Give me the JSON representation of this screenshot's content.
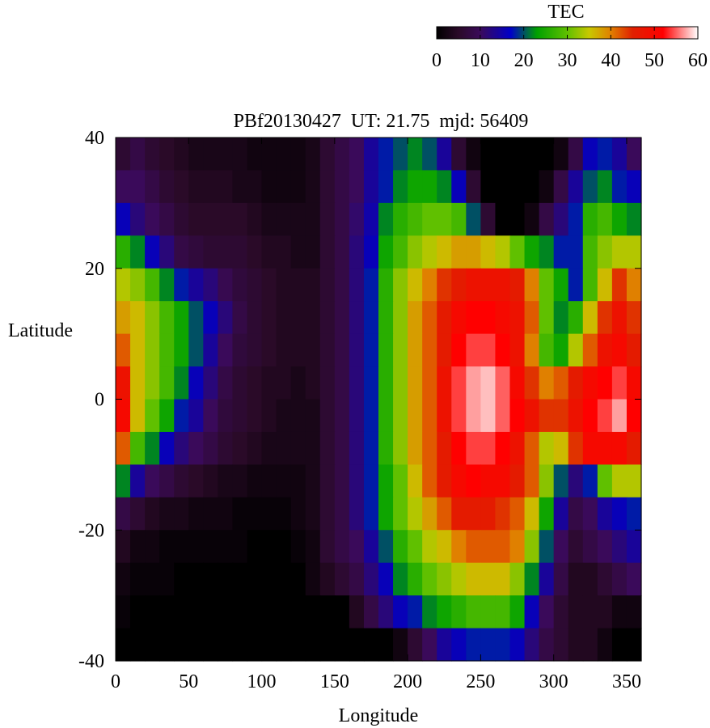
{
  "chart_data": {
    "type": "heatmap",
    "title": "PBf20130427  UT: 21.75  mjd: 56409",
    "xlabel": "Longitude",
    "ylabel": "Latitude",
    "xlim": [
      0,
      360
    ],
    "ylim": [
      -40,
      40
    ],
    "xticks": [
      "0",
      "50",
      "100",
      "150",
      "200",
      "250",
      "300",
      "350"
    ],
    "yticks": [
      "40",
      "20",
      "0",
      "-20",
      "-40"
    ],
    "colorbar": {
      "label": "TEC",
      "range": [
        0,
        60
      ],
      "ticks": [
        "0",
        "10",
        "20",
        "30",
        "40",
        "50",
        "60"
      ],
      "stops": [
        {
          "value": 0,
          "color": "#000000"
        },
        {
          "value": 5,
          "color": "#2a0a28"
        },
        {
          "value": 10,
          "color": "#3a0a5a"
        },
        {
          "value": 17,
          "color": "#0000c8"
        },
        {
          "value": 23,
          "color": "#00a000"
        },
        {
          "value": 30,
          "color": "#60c000"
        },
        {
          "value": 35,
          "color": "#c8c800"
        },
        {
          "value": 40,
          "color": "#e08000"
        },
        {
          "value": 45,
          "color": "#e02000"
        },
        {
          "value": 52,
          "color": "#ff0000"
        },
        {
          "value": 60,
          "color": "#ffffff"
        }
      ]
    },
    "lon_bins": [
      0,
      10,
      20,
      30,
      40,
      50,
      60,
      70,
      80,
      90,
      100,
      110,
      120,
      130,
      140,
      150,
      160,
      170,
      180,
      190,
      200,
      210,
      220,
      230,
      240,
      250,
      260,
      270,
      280,
      290,
      300,
      310,
      320,
      330,
      340,
      350,
      360
    ],
    "lat_bins": [
      40,
      35,
      30,
      25,
      20,
      15,
      10,
      5,
      0,
      -5,
      -10,
      -15,
      -20,
      -25,
      -30,
      -35,
      -40
    ],
    "values": [
      [
        6,
        8,
        6,
        5,
        4,
        3,
        3,
        3,
        3,
        2,
        2,
        2,
        2,
        3,
        6,
        8,
        10,
        14,
        18,
        20,
        22,
        20,
        14,
        6,
        2,
        0,
        0,
        0,
        0,
        0,
        2,
        8,
        16,
        18,
        14,
        10
      ],
      [
        10,
        10,
        8,
        6,
        5,
        4,
        4,
        4,
        3,
        3,
        2,
        2,
        2,
        3,
        6,
        8,
        10,
        14,
        18,
        22,
        24,
        24,
        22,
        16,
        6,
        0,
        0,
        0,
        0,
        2,
        8,
        14,
        20,
        22,
        18,
        16
      ],
      [
        16,
        12,
        10,
        8,
        6,
        5,
        5,
        5,
        5,
        4,
        3,
        3,
        3,
        3,
        6,
        8,
        11,
        15,
        22,
        26,
        28,
        30,
        30,
        28,
        20,
        6,
        0,
        0,
        2,
        8,
        12,
        18,
        26,
        28,
        24,
        22
      ],
      [
        26,
        22,
        16,
        12,
        8,
        7,
        6,
        6,
        6,
        5,
        4,
        4,
        3,
        3,
        6,
        8,
        12,
        16,
        24,
        28,
        32,
        34,
        36,
        38,
        38,
        36,
        34,
        30,
        24,
        22,
        18,
        18,
        28,
        32,
        34,
        34
      ],
      [
        34,
        32,
        28,
        22,
        18,
        14,
        12,
        9,
        7,
        6,
        5,
        4,
        4,
        4,
        6,
        8,
        12,
        18,
        26,
        32,
        36,
        40,
        44,
        46,
        48,
        48,
        48,
        46,
        40,
        30,
        24,
        18,
        28,
        36,
        44,
        40
      ],
      [
        38,
        36,
        32,
        28,
        24,
        20,
        16,
        12,
        8,
        6,
        5,
        4,
        4,
        4,
        6,
        8,
        12,
        18,
        26,
        32,
        38,
        42,
        46,
        50,
        52,
        52,
        50,
        48,
        42,
        30,
        22,
        26,
        36,
        44,
        48,
        44
      ],
      [
        42,
        36,
        32,
        28,
        24,
        20,
        14,
        10,
        7,
        6,
        5,
        4,
        4,
        4,
        6,
        8,
        12,
        18,
        26,
        32,
        38,
        42,
        46,
        52,
        54,
        54,
        52,
        48,
        40,
        28,
        24,
        34,
        42,
        48,
        50,
        46
      ],
      [
        48,
        36,
        32,
        28,
        22,
        16,
        12,
        8,
        6,
        5,
        4,
        4,
        3,
        4,
        6,
        8,
        12,
        18,
        26,
        32,
        38,
        42,
        48,
        54,
        57,
        58,
        55,
        50,
        44,
        40,
        42,
        46,
        50,
        52,
        54,
        50
      ],
      [
        50,
        36,
        30,
        24,
        18,
        14,
        10,
        7,
        6,
        5,
        4,
        3,
        3,
        3,
        6,
        8,
        12,
        18,
        26,
        32,
        38,
        42,
        48,
        54,
        57,
        58,
        55,
        52,
        48,
        44,
        44,
        48,
        52,
        54,
        57,
        52
      ],
      [
        42,
        28,
        22,
        16,
        12,
        10,
        8,
        6,
        5,
        4,
        3,
        3,
        3,
        3,
        6,
        8,
        12,
        18,
        26,
        32,
        38,
        42,
        46,
        52,
        54,
        54,
        52,
        48,
        42,
        34,
        36,
        44,
        50,
        50,
        50,
        46
      ],
      [
        22,
        14,
        10,
        8,
        6,
        5,
        4,
        3,
        3,
        2,
        2,
        2,
        2,
        3,
        6,
        8,
        12,
        18,
        24,
        30,
        36,
        42,
        46,
        50,
        52,
        50,
        50,
        46,
        42,
        32,
        20,
        12,
        18,
        30,
        34,
        34
      ],
      [
        8,
        6,
        4,
        3,
        3,
        2,
        2,
        2,
        1,
        1,
        1,
        1,
        2,
        3,
        6,
        8,
        12,
        18,
        24,
        30,
        34,
        38,
        42,
        46,
        46,
        46,
        44,
        42,
        36,
        24,
        14,
        8,
        10,
        14,
        16,
        18
      ],
      [
        4,
        2,
        2,
        1,
        1,
        1,
        1,
        1,
        1,
        0,
        0,
        0,
        1,
        2,
        6,
        8,
        10,
        14,
        20,
        26,
        30,
        34,
        36,
        40,
        42,
        42,
        42,
        40,
        32,
        20,
        10,
        6,
        8,
        10,
        12,
        14
      ],
      [
        2,
        1,
        1,
        1,
        0,
        0,
        0,
        0,
        0,
        0,
        0,
        0,
        0,
        2,
        4,
        6,
        8,
        12,
        16,
        22,
        26,
        30,
        32,
        34,
        36,
        36,
        36,
        32,
        22,
        14,
        8,
        4,
        4,
        6,
        8,
        10
      ],
      [
        1,
        0,
        0,
        0,
        0,
        0,
        0,
        0,
        0,
        0,
        0,
        0,
        0,
        0,
        0,
        0,
        4,
        8,
        12,
        16,
        18,
        22,
        24,
        26,
        28,
        28,
        28,
        24,
        16,
        10,
        6,
        4,
        4,
        4,
        2,
        2
      ],
      [
        0,
        0,
        0,
        0,
        0,
        0,
        0,
        0,
        0,
        0,
        0,
        0,
        0,
        0,
        0,
        0,
        0,
        0,
        0,
        2,
        6,
        10,
        14,
        16,
        18,
        18,
        18,
        16,
        12,
        8,
        6,
        4,
        4,
        2,
        0,
        0
      ]
    ]
  }
}
